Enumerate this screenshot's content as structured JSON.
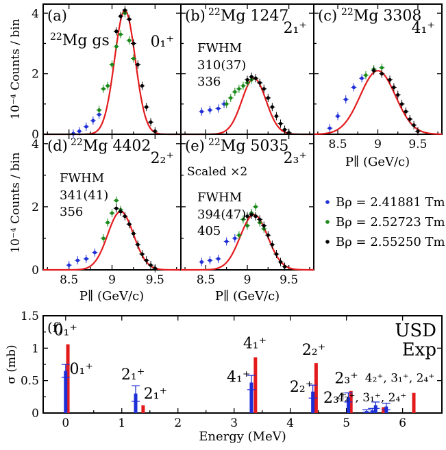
{
  "colors": {
    "red": "#e31a1c",
    "blue": "#1f2fd6",
    "green": "#1a8a1a",
    "black": "#000000"
  },
  "shared": {
    "ylabel": "10⁻⁴ Counts / bin",
    "xlabel": "P∥ (GeV/c)",
    "fwhm_label": "FWHM",
    "legend": [
      {
        "label": "Bρ = 2.41881 Tm",
        "color": "#1f2fd6"
      },
      {
        "label": "Bρ = 2.52723 Tm",
        "color": "#1a8a1a"
      },
      {
        "label": "Bρ = 2.55250 Tm",
        "color": "#000000"
      }
    ]
  },
  "chart_data": [
    {
      "type": "scatter",
      "panel": "a",
      "label": "(a)",
      "nucleus": "22Mg gs",
      "state": "0₁⁺",
      "xlim": [
        8.2,
        9.8
      ],
      "ylim": [
        0,
        4.3
      ],
      "yticks": [
        0,
        2,
        4
      ],
      "peak": 4.1,
      "center": 9.15,
      "sigma": 0.12,
      "series": [
        {
          "color": "blue",
          "x": [
            8.55,
            8.62,
            8.7,
            8.78,
            8.85
          ],
          "y": [
            0.02,
            0.1,
            0.25,
            0.45,
            0.65
          ]
        },
        {
          "color": "green",
          "x": [
            8.85,
            8.9,
            8.95,
            9.0,
            9.05,
            9.1,
            9.15,
            9.2,
            9.25
          ],
          "y": [
            0.8,
            1.5,
            1.6,
            2.3,
            2.9,
            3.3,
            4.0,
            3.1,
            2.5
          ]
        },
        {
          "color": "black",
          "x": [
            9.05,
            9.1,
            9.15,
            9.2,
            9.25,
            9.3,
            9.35,
            9.4,
            9.45,
            9.5
          ],
          "y": [
            3.4,
            3.9,
            4.1,
            3.8,
            3.0,
            2.3,
            1.6,
            0.9,
            0.4,
            0.1
          ]
        }
      ]
    },
    {
      "type": "scatter",
      "panel": "b",
      "label": "(b)",
      "nucleus": "22Mg 1247",
      "state": "2₁⁺",
      "fwhm_exp": "310(37)",
      "fwhm_usd": "336",
      "xlim": [
        8.2,
        9.8
      ],
      "ylim": [
        0,
        4.3
      ],
      "peak": 1.85,
      "center": 9.08,
      "sigma": 0.145,
      "series": [
        {
          "color": "blue",
          "x": [
            8.45,
            8.55,
            8.65,
            8.72
          ],
          "y": [
            0.75,
            0.8,
            0.85,
            1.0
          ]
        },
        {
          "color": "green",
          "x": [
            8.75,
            8.8,
            8.85,
            8.9,
            8.95,
            9.0,
            9.05
          ],
          "y": [
            1.0,
            1.2,
            1.4,
            1.5,
            1.6,
            1.7,
            1.8
          ]
        },
        {
          "color": "black",
          "x": [
            9.0,
            9.05,
            9.1,
            9.15,
            9.2,
            9.25,
            9.3,
            9.35,
            9.4,
            9.45,
            9.5
          ],
          "y": [
            1.8,
            1.9,
            1.85,
            1.7,
            1.5,
            1.2,
            0.9,
            0.6,
            0.35,
            0.15,
            0.05
          ]
        }
      ]
    },
    {
      "type": "scatter",
      "panel": "c",
      "label": "(c)",
      "nucleus": "22Mg 3308",
      "state": "4₁⁺",
      "xlim": [
        8.2,
        9.8
      ],
      "ylim": [
        0,
        4.3
      ],
      "xticks": [
        8.5,
        9,
        9.5
      ],
      "peak": 2.1,
      "center": 9.0,
      "sigma": 0.22,
      "series": [
        {
          "color": "blue",
          "x": [
            8.4,
            8.5,
            8.6,
            8.7,
            8.8
          ],
          "y": [
            0.2,
            0.6,
            1.15,
            1.55,
            1.85
          ]
        },
        {
          "color": "green",
          "x": [
            8.85,
            8.95,
            9.05
          ],
          "y": [
            1.95,
            2.15,
            2.2
          ]
        },
        {
          "color": "black",
          "x": [
            8.95,
            9.05,
            9.15,
            9.2,
            9.25,
            9.3,
            9.35,
            9.4,
            9.45,
            9.5
          ],
          "y": [
            2.1,
            2.0,
            1.8,
            1.55,
            1.3,
            1.0,
            0.75,
            0.5,
            0.3,
            0.1
          ]
        }
      ]
    },
    {
      "type": "scatter",
      "panel": "d",
      "label": "(d)",
      "nucleus": "22Mg 4402",
      "state": "2₂⁺",
      "fwhm_exp": "341(41)",
      "fwhm_usd": "356",
      "xlim": [
        8.2,
        9.8
      ],
      "ylim": [
        0,
        4.3
      ],
      "xticks": [
        8.5,
        9,
        9.5
      ],
      "yticks": [
        0,
        2,
        4
      ],
      "peak": 1.85,
      "center": 9.1,
      "sigma": 0.15,
      "series": [
        {
          "color": "blue",
          "x": [
            8.5,
            8.6,
            8.7,
            8.8
          ],
          "y": [
            0.15,
            0.3,
            0.35,
            0.55
          ]
        },
        {
          "color": "green",
          "x": [
            8.9,
            8.95,
            9.0,
            9.05,
            9.1
          ],
          "y": [
            1.0,
            1.5,
            1.8,
            2.2,
            1.9
          ]
        },
        {
          "color": "black",
          "x": [
            9.05,
            9.1,
            9.15,
            9.2,
            9.25,
            9.3,
            9.35,
            9.4,
            9.45,
            9.5
          ],
          "y": [
            1.95,
            1.85,
            1.7,
            1.45,
            1.15,
            0.8,
            0.5,
            0.3,
            0.15,
            0.05
          ]
        }
      ]
    },
    {
      "type": "scatter",
      "panel": "e",
      "label": "(e)",
      "nucleus": "22Mg 5035",
      "state": "2₃⁺",
      "scaled": "Scaled ×2",
      "fwhm_exp": "394(47)",
      "fwhm_usd": "405",
      "xlim": [
        8.2,
        9.8
      ],
      "ylim": [
        0,
        4.3
      ],
      "xticks": [
        8.5,
        9,
        9.5
      ],
      "peak": 1.75,
      "center": 9.08,
      "sigma": 0.165,
      "series": [
        {
          "color": "blue",
          "x": [
            8.45,
            8.55,
            8.65,
            8.75,
            8.85
          ],
          "y": [
            0.25,
            0.3,
            0.35,
            0.9,
            1.0
          ]
        },
        {
          "color": "green",
          "x": [
            8.9,
            8.95,
            9.0,
            9.05,
            9.1,
            9.15,
            9.2
          ],
          "y": [
            1.1,
            1.6,
            1.4,
            1.8,
            2.0,
            1.5,
            1.3
          ]
        },
        {
          "color": "black",
          "x": [
            9.0,
            9.05,
            9.1,
            9.15,
            9.2,
            9.25,
            9.3,
            9.35,
            9.4,
            9.45
          ],
          "y": [
            1.7,
            1.75,
            1.7,
            1.6,
            1.4,
            1.1,
            0.8,
            0.5,
            0.25,
            0.1
          ]
        }
      ]
    },
    {
      "type": "bar",
      "panel": "f",
      "label": "(f)",
      "xlabel": "Energy (MeV)",
      "ylabel": "σ (mb)",
      "xlim": [
        -0.4,
        6.7
      ],
      "ylim": [
        0,
        1.5
      ],
      "xticks": [
        0,
        1,
        2,
        3,
        4,
        5,
        6
      ],
      "yticks": [
        0,
        0.5,
        1,
        1.5
      ],
      "legend": [
        {
          "label": "USD",
          "color": "red"
        },
        {
          "label": "Exp",
          "color": "blue"
        }
      ],
      "exp_bars": [
        {
          "energy": 0.0,
          "value": 0.65,
          "err": 0.1
        },
        {
          "energy": 1.247,
          "value": 0.3,
          "err": 0.12
        },
        {
          "energy": 3.308,
          "value": 0.47,
          "err": 0.11
        },
        {
          "energy": 4.402,
          "value": 0.33,
          "err": 0.1
        },
        {
          "energy": 5.035,
          "value": 0.24,
          "err": 0.07
        },
        {
          "energy": 5.36,
          "value": 0.03,
          "err": 0.02
        },
        {
          "energy": 5.46,
          "value": 0.04,
          "err": 0.03
        },
        {
          "energy": 5.52,
          "value": 0.12,
          "err": 0.05
        },
        {
          "energy": 5.71,
          "value": 0.1,
          "err": 0.05
        }
      ],
      "usd_bars": [
        {
          "energy": 0.04,
          "value": 1.06
        },
        {
          "energy": 1.38,
          "value": 0.12
        },
        {
          "energy": 3.38,
          "value": 0.86
        },
        {
          "energy": 4.46,
          "value": 0.77
        },
        {
          "energy": 5.08,
          "value": 0.34
        },
        {
          "energy": 5.66,
          "value": 0.09
        },
        {
          "energy": 6.2,
          "value": 0.31
        }
      ],
      "labels": [
        {
          "text": "0₁⁺",
          "color": "red",
          "energy": 0.0,
          "sigma": 1.2
        },
        {
          "text": "0₁⁺",
          "color": "blue",
          "energy": 0.28,
          "sigma": 0.6
        },
        {
          "text": "2₁⁺",
          "color": "blue",
          "energy": 1.2,
          "sigma": 0.52
        },
        {
          "text": "2₁⁺",
          "color": "red",
          "energy": 1.6,
          "sigma": 0.22
        },
        {
          "text": "4₁⁺",
          "color": "red",
          "energy": 3.37,
          "sigma": 1.0
        },
        {
          "text": "4₁⁺",
          "color": "blue",
          "energy": 3.08,
          "sigma": 0.48
        },
        {
          "text": "2₂⁺",
          "color": "red",
          "energy": 4.42,
          "sigma": 0.9
        },
        {
          "text": "2₂⁺",
          "color": "blue",
          "energy": 4.2,
          "sigma": 0.33
        },
        {
          "text": "2₃⁺",
          "color": "red",
          "energy": 5.0,
          "sigma": 0.46
        },
        {
          "text": "2₃⁺",
          "color": "blue",
          "energy": 4.8,
          "sigma": 0.16
        },
        {
          "text": "4₂⁺, 3₁⁺, 2₄⁺",
          "color": "red",
          "energy": 5.95,
          "sigma": 0.48
        },
        {
          "text": "4₂⁺, 3₁⁺, 2₄⁺",
          "color": "blue",
          "energy": 5.45,
          "sigma": 0.18
        }
      ]
    }
  ]
}
